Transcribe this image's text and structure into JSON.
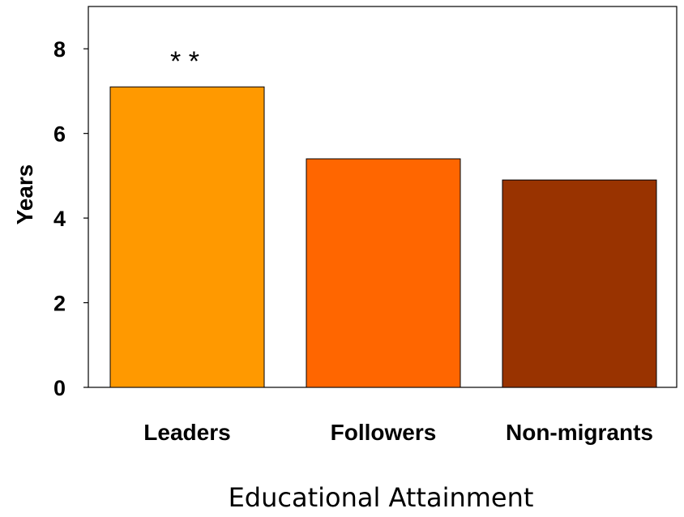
{
  "chart_data": {
    "type": "bar",
    "title": "",
    "xlabel": "Educational Attainment",
    "ylabel": "Years",
    "categories": [
      "Leaders",
      "Followers",
      "Non-migrants"
    ],
    "values": [
      7.1,
      5.4,
      4.9
    ],
    "colors": [
      "#FF9900",
      "#FF6600",
      "#993300"
    ],
    "ylim": [
      0,
      9
    ],
    "yticks": [
      "0",
      "2",
      "4",
      "6",
      "8"
    ],
    "annotations": [
      {
        "category": "Leaders",
        "text": "* *"
      }
    ],
    "grid": false,
    "legend": "none"
  }
}
